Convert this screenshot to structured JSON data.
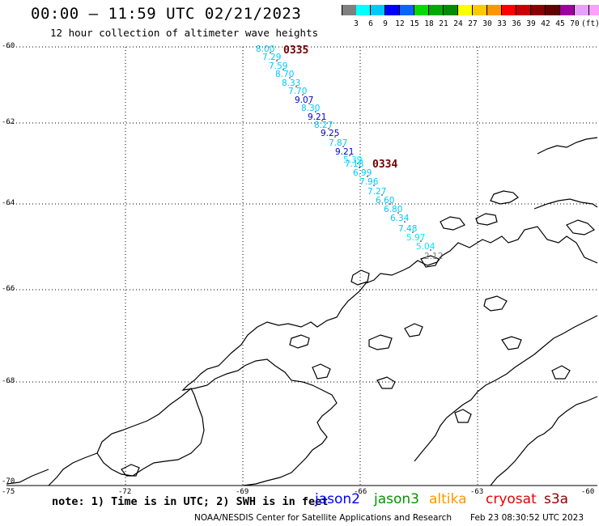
{
  "header": {
    "title": "00:00 – 11:59 UTC 02/21/2023",
    "subtitle": "12 hour collection of altimeter wave heights"
  },
  "legend": {
    "colors": [
      "#808080",
      "#00ffff",
      "#00c8ff",
      "#0000ff",
      "#0a64ff",
      "#00dc00",
      "#00aa00",
      "#008c00",
      "#ffff00",
      "#ffc800",
      "#ff9600",
      "#ff0000",
      "#c80000",
      "#8c0000",
      "#640000",
      "#a000a0",
      "#e6a0ff",
      "#ffa0ff",
      "#000000"
    ],
    "labels": [
      "3",
      "6",
      "9",
      "12",
      "15",
      "18",
      "21",
      "24",
      "27",
      "30",
      "33",
      "36",
      "39",
      "42",
      "45",
      "70",
      "(ft)"
    ]
  },
  "axes": {
    "lat_labels": [
      "-60",
      "-62",
      "-64",
      "-66",
      "-68",
      "-70"
    ],
    "lon_labels": [
      "-75",
      "-72",
      "-69",
      "-66",
      "-63",
      "-60"
    ]
  },
  "tracks": [
    {
      "label": "0335",
      "satellite": "cryosat"
    },
    {
      "label": "0334",
      "satellite": "cryosat"
    }
  ],
  "swh_readings": [
    {
      "value": "8.00",
      "color": "#00c8ff"
    },
    {
      "value": "7.29",
      "color": "#00c8ff"
    },
    {
      "value": "7.59",
      "color": "#00c8ff"
    },
    {
      "value": "8.70",
      "color": "#00c8ff"
    },
    {
      "value": "8.33",
      "color": "#00c8ff"
    },
    {
      "value": "7.70",
      "color": "#00c8ff"
    },
    {
      "value": "9.07",
      "color": "#0000c8"
    },
    {
      "value": "8.30",
      "color": "#00c8ff"
    },
    {
      "value": "9.21",
      "color": "#0000c8"
    },
    {
      "value": "8.27",
      "color": "#00c8ff"
    },
    {
      "value": "9.25",
      "color": "#0000c8"
    },
    {
      "value": "7.87",
      "color": "#00c8ff"
    },
    {
      "value": "9.21",
      "color": "#0000c8"
    },
    {
      "value": "5.39",
      "color": "#00e6ff"
    },
    {
      "value": "7.18",
      "color": "#00c8ff"
    },
    {
      "value": "6.99",
      "color": "#00c8ff"
    },
    {
      "value": "7.96",
      "color": "#00c8ff"
    },
    {
      "value": "7.27",
      "color": "#00c8ff"
    },
    {
      "value": "6.60",
      "color": "#00c8ff"
    },
    {
      "value": "6.80",
      "color": "#00c8ff"
    },
    {
      "value": "6.34",
      "color": "#00c8ff"
    },
    {
      "value": "7.48",
      "color": "#00c8ff"
    },
    {
      "value": "5.97",
      "color": "#00e6ff"
    },
    {
      "value": "5.04",
      "color": "#00e6ff"
    },
    {
      "value": "2.12",
      "color": "#808080"
    }
  ],
  "footer": {
    "note": "note: 1) Time is in UTC; 2) SWH is in feet",
    "satellites": [
      {
        "name": "jason2",
        "color": "#0000ff"
      },
      {
        "name": "jason3",
        "color": "#009600"
      },
      {
        "name": "altika",
        "color": "#ff9600"
      },
      {
        "name": "cryosat",
        "color": "#e60000"
      },
      {
        "name": "s3a",
        "color": "#8c0000"
      }
    ],
    "credit": "NOAA/NESDIS Center for Satellite Applications and Research",
    "timestamp": "Feb 23 08:30:52 UTC 2023"
  }
}
